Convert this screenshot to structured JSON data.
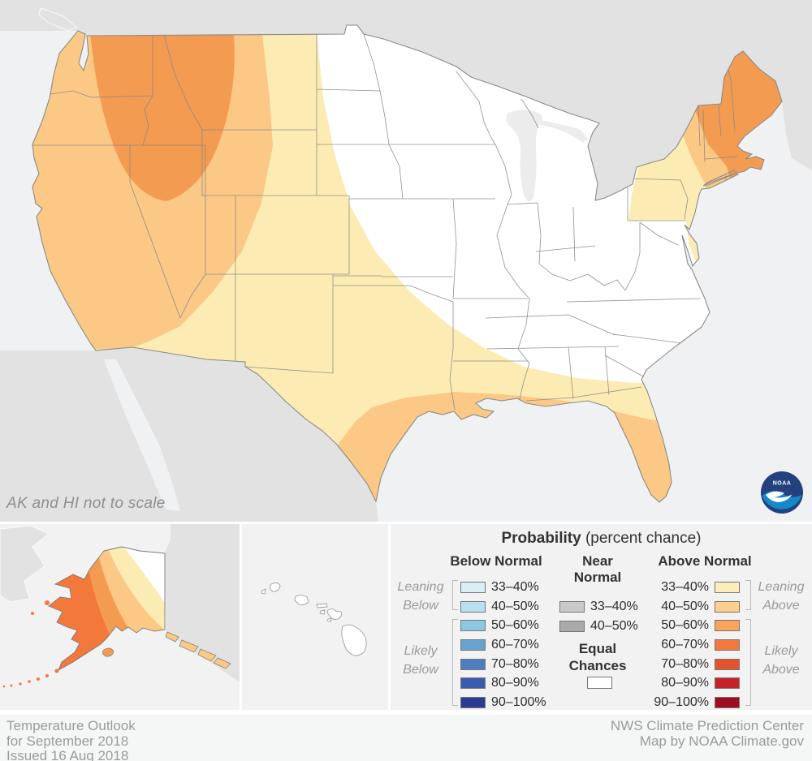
{
  "map": {
    "note": "AK and HI not to scale"
  },
  "map_colors": {
    "equal_chances": "#ffffff",
    "above_33_40": "#fcecb4",
    "above_40_50": "#fbc985",
    "above_50_60": "#f49b52",
    "above_60_70": "#f3783c",
    "ocean": "#f0f1f2",
    "foreign_land": "#e2e2e2",
    "lake": "#ececec",
    "outline": "#8a8a8a"
  },
  "legend": {
    "title": "Probability",
    "title_suffix": "(percent chance)",
    "below": {
      "header": "Below Normal",
      "rows": [
        {
          "label": "33–40%",
          "color": "#daeef6"
        },
        {
          "label": "40–50%",
          "color": "#b9e0ef"
        },
        {
          "label": "50–60%",
          "color": "#8ec8e0"
        },
        {
          "label": "60–70%",
          "color": "#68a2cf"
        },
        {
          "label": "70–80%",
          "color": "#4d7fc0"
        },
        {
          "label": "80–90%",
          "color": "#3a5cae"
        },
        {
          "label": "90–100%",
          "color": "#2b3a92"
        }
      ]
    },
    "near": {
      "header1": "Near",
      "header2": "Normal",
      "rows": [
        {
          "label": "33–40%",
          "color": "#c9c9c9"
        },
        {
          "label": "40–50%",
          "color": "#aaaaaa"
        }
      ]
    },
    "above": {
      "header": "Above Normal",
      "rows": [
        {
          "label": "33–40%",
          "color": "#fdedba"
        },
        {
          "label": "40–50%",
          "color": "#fccf8e"
        },
        {
          "label": "50–60%",
          "color": "#f9a45a"
        },
        {
          "label": "60–70%",
          "color": "#f3783c"
        },
        {
          "label": "70–80%",
          "color": "#e4532f"
        },
        {
          "label": "80–90%",
          "color": "#c52329"
        },
        {
          "label": "90–100%",
          "color": "#9e0d21"
        }
      ]
    },
    "equal": {
      "label1": "Equal",
      "label2": "Chances",
      "color": "#ffffff"
    },
    "side_labels": {
      "leaning_below_1": "Leaning",
      "leaning_below_2": "Below",
      "likely_below_1": "Likely",
      "likely_below_2": "Below",
      "leaning_above_1": "Leaning",
      "leaning_above_2": "Above",
      "likely_above_1": "Likely",
      "likely_above_2": "Above"
    }
  },
  "footer": {
    "left": [
      "Temperature Outlook",
      "for September 2018",
      "Issued 16 Aug 2018"
    ],
    "right": [
      "NWS Climate Prediction Center",
      "Map by NOAA Climate.gov"
    ]
  },
  "logo": {
    "label": "NOAA"
  }
}
